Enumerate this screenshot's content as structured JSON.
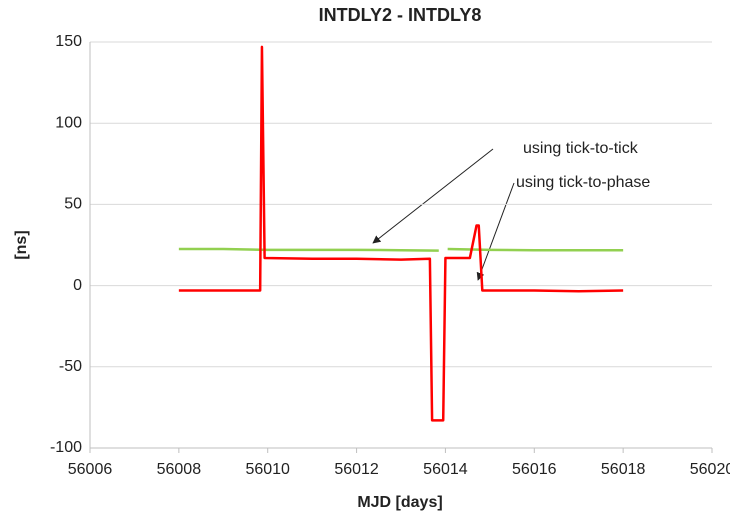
{
  "chart_data": {
    "type": "line",
    "title": "INTDLY2 - INTDLY8",
    "xlabel": "MJD [days]",
    "ylabel": "[ns]",
    "xlim": [
      56006,
      56020
    ],
    "xticks": [
      56006,
      56008,
      56010,
      56012,
      56014,
      56016,
      56018,
      56020
    ],
    "ylim": [
      -100,
      150
    ],
    "yticks": [
      -100,
      -50,
      0,
      50,
      100,
      150
    ],
    "grid": true,
    "series": [
      {
        "color": "#92d050",
        "x": [
          56008,
          56009,
          56010,
          56011,
          56012,
          56013,
          56013.85,
          56013.95,
          56014.05,
          56015,
          56016,
          56017,
          56018
        ],
        "values": [
          22.5,
          22.5,
          22,
          22,
          22,
          21.8,
          21.5,
          null,
          22.5,
          22,
          21.8,
          21.8,
          21.8
        ]
      },
      {
        "color": "#ff0000",
        "x": [
          56008,
          56009,
          56009.83,
          56009.87,
          56009.93,
          56011,
          56012,
          56013,
          56013.65,
          56013.7,
          56013.95,
          56014,
          56014.55,
          56014.7,
          56014.75,
          56014.83,
          56016,
          56017,
          56018
        ],
        "values": [
          -3,
          -3,
          -3,
          147,
          17,
          16.5,
          16.5,
          16,
          16.5,
          -83,
          -83,
          17,
          17,
          37,
          37,
          -3,
          -3,
          -3.5,
          -3
        ]
      }
    ],
    "annotations": [
      "using tick-to-tick",
      "using tick-to-phase"
    ]
  }
}
